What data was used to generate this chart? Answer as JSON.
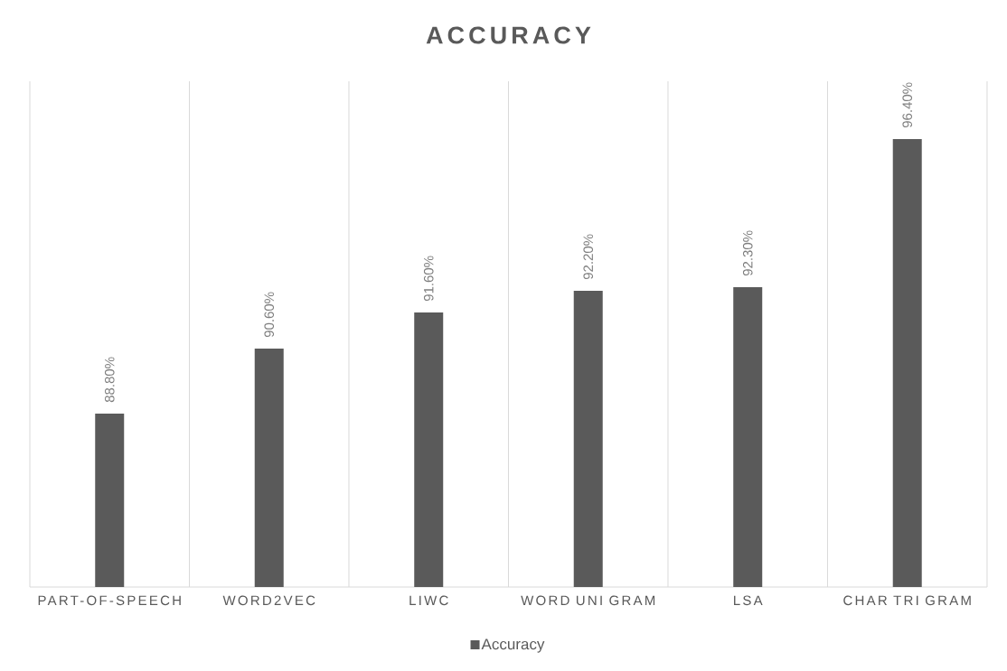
{
  "chart_data": {
    "type": "bar",
    "title": "ACCURACY",
    "categories": [
      "PART-OF-SPEECH",
      "WORD2VEC",
      "LIWC",
      "WORD UNI GRAM",
      "LSA",
      "CHAR TRI GRAM"
    ],
    "series": [
      {
        "name": "Accuracy",
        "color": "#5a5a5a",
        "values": [
          88.8,
          90.6,
          91.6,
          92.2,
          92.3,
          96.4
        ],
        "value_labels": [
          "88.80%",
          "90.60%",
          "91.60%",
          "92.20%",
          "92.30%",
          "96.40%"
        ]
      }
    ],
    "ylim": [
      84,
      98
    ],
    "grid": "x",
    "legend": "bottom",
    "tick_labels": "x"
  }
}
